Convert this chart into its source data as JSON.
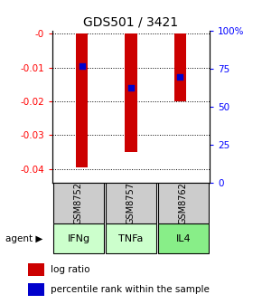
{
  "title": "GDS501 / 3421",
  "samples": [
    "GSM8752",
    "GSM8757",
    "GSM8762"
  ],
  "agents": [
    "IFNg",
    "TNFa",
    "IL4"
  ],
  "log_ratios": [
    -0.0395,
    -0.035,
    -0.02
  ],
  "percentile_ranks": [
    76,
    60,
    68
  ],
  "ylim_left": [
    -0.044,
    0.001
  ],
  "yticks_left": [
    0.0,
    -0.01,
    -0.02,
    -0.03,
    -0.04
  ],
  "ytick_labels_left": [
    "-0",
    "-0.01",
    "-0.02",
    "-0.03",
    "-0.04"
  ],
  "yticks_right_vals": [
    0,
    25,
    50,
    75,
    100
  ],
  "ytick_labels_right": [
    "0",
    "25",
    "50",
    "75",
    "100%"
  ],
  "bar_color": "#cc0000",
  "dot_color": "#0000cc",
  "agent_colors": [
    "#ccffcc",
    "#aaffaa",
    "#88ee88"
  ],
  "gsm_bg_color": "#cccccc",
  "legend_bar_label": "log ratio",
  "legend_dot_label": "percentile rank within the sample",
  "figsize": [
    2.9,
    3.36
  ],
  "dpi": 100,
  "bar_width": 0.25
}
